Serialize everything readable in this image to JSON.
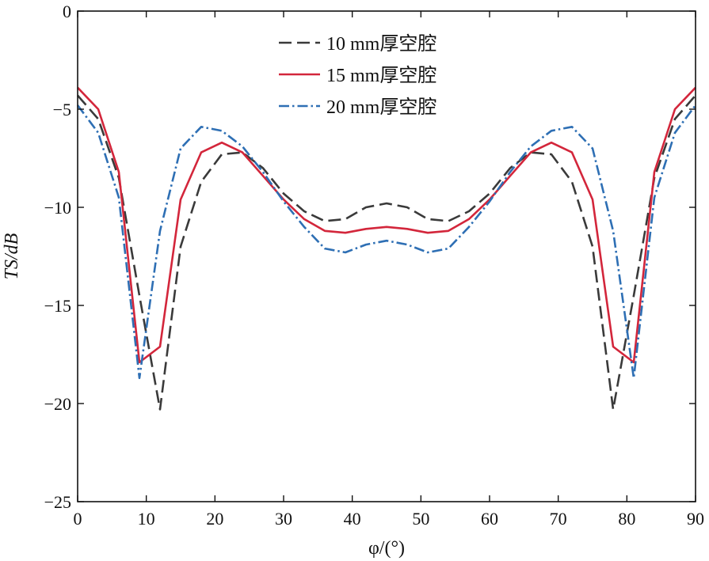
{
  "chart_data": {
    "type": "line",
    "xlabel": "φ/(°)",
    "ylabel": "TS/dB",
    "xlim": [
      0,
      90
    ],
    "ylim": [
      -25,
      0
    ],
    "xticks": [
      0,
      10,
      20,
      30,
      40,
      50,
      60,
      70,
      80,
      90
    ],
    "yticks": [
      0,
      -5,
      -10,
      -15,
      -20,
      -25
    ],
    "xtick_labels": [
      "0",
      "10",
      "20",
      "30",
      "40",
      "50",
      "60",
      "70",
      "80",
      "90"
    ],
    "ytick_labels": [
      "0",
      "−5",
      "−10",
      "−15",
      "−20",
      "−25"
    ],
    "grid": false,
    "legend_position": "top-center",
    "x": [
      0,
      3,
      6,
      9,
      12,
      15,
      18,
      21,
      24,
      27,
      30,
      33,
      36,
      39,
      42,
      45,
      48,
      51,
      54,
      57,
      60,
      63,
      66,
      69,
      72,
      75,
      78,
      81,
      84,
      87,
      90
    ],
    "series": [
      {
        "name": "10 mm厚空腔",
        "color": "#3a3a3a",
        "dash": "16,7",
        "values": [
          -4.3,
          -5.5,
          -8.5,
          -14.5,
          -20.3,
          -12.0,
          -8.7,
          -7.3,
          -7.2,
          -8.0,
          -9.3,
          -10.2,
          -10.7,
          -10.6,
          -10.0,
          -9.8,
          -10.0,
          -10.6,
          -10.7,
          -10.2,
          -9.3,
          -8.0,
          -7.2,
          -7.3,
          -8.7,
          -12.0,
          -20.3,
          -14.5,
          -8.5,
          -5.5,
          -4.3
        ]
      },
      {
        "name": "15 mm厚空腔",
        "color": "#d3263b",
        "dash": "",
        "values": [
          -3.9,
          -5.0,
          -8.2,
          -17.9,
          -17.1,
          -9.6,
          -7.2,
          -6.7,
          -7.2,
          -8.4,
          -9.6,
          -10.6,
          -11.2,
          -11.3,
          -11.1,
          -11.0,
          -11.1,
          -11.3,
          -11.2,
          -10.6,
          -9.6,
          -8.4,
          -7.2,
          -6.7,
          -7.2,
          -9.6,
          -17.1,
          -17.9,
          -8.2,
          -5.0,
          -3.9
        ]
      },
      {
        "name": "20 mm厚空腔",
        "color": "#2e6fb4",
        "dash": "13,4,2.5,4",
        "values": [
          -4.8,
          -6.2,
          -9.5,
          -18.7,
          -11.2,
          -7.0,
          -5.9,
          -6.1,
          -6.9,
          -8.2,
          -9.7,
          -11.0,
          -12.1,
          -12.3,
          -11.9,
          -11.7,
          -11.9,
          -12.3,
          -12.1,
          -11.0,
          -9.7,
          -8.2,
          -6.9,
          -6.1,
          -5.9,
          -7.0,
          -11.2,
          -18.7,
          -9.5,
          -6.2,
          -4.8
        ]
      }
    ]
  }
}
